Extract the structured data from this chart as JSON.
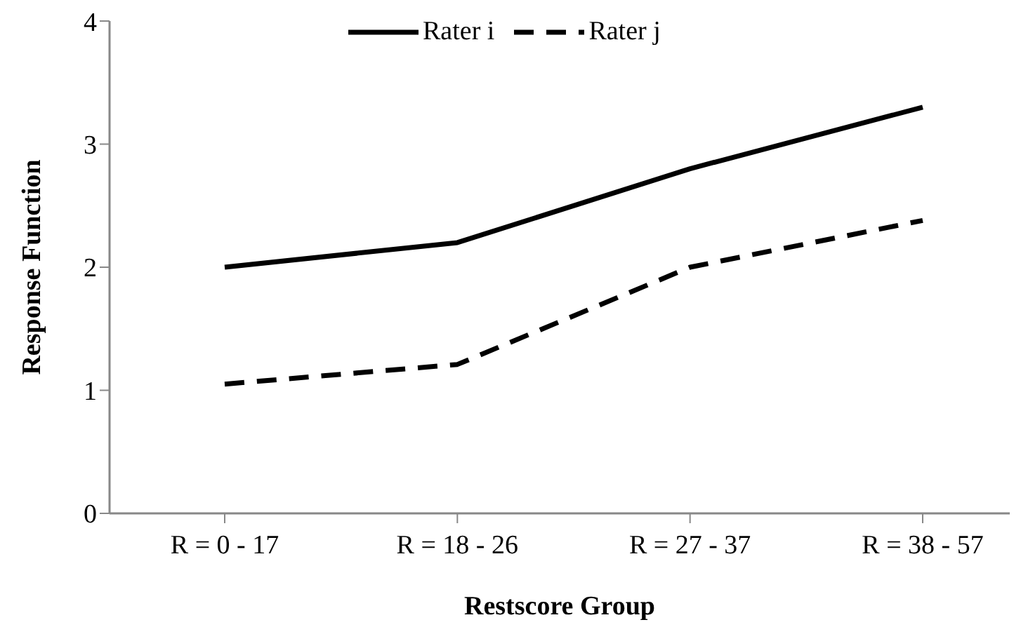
{
  "chart_data": {
    "type": "line",
    "xlabel": "Restscore Group",
    "ylabel": "Response Function",
    "categories": [
      "R = 0 - 17",
      "R = 18 - 26",
      "R = 27 - 37",
      "R = 38 - 57"
    ],
    "series": [
      {
        "name": "Rater i",
        "color": "#000000",
        "values": [
          2.0,
          2.2,
          2.8,
          3.3
        ],
        "line_style": "solid"
      },
      {
        "name": "Rater j",
        "color": "#000000",
        "values": [
          1.05,
          1.21,
          2.0,
          2.38
        ],
        "line_style": "dashed"
      }
    ],
    "ylim": [
      0,
      4
    ],
    "yticks": [
      0,
      1,
      2,
      3,
      4
    ],
    "grid": false,
    "legend": "top",
    "marker": "none"
  }
}
